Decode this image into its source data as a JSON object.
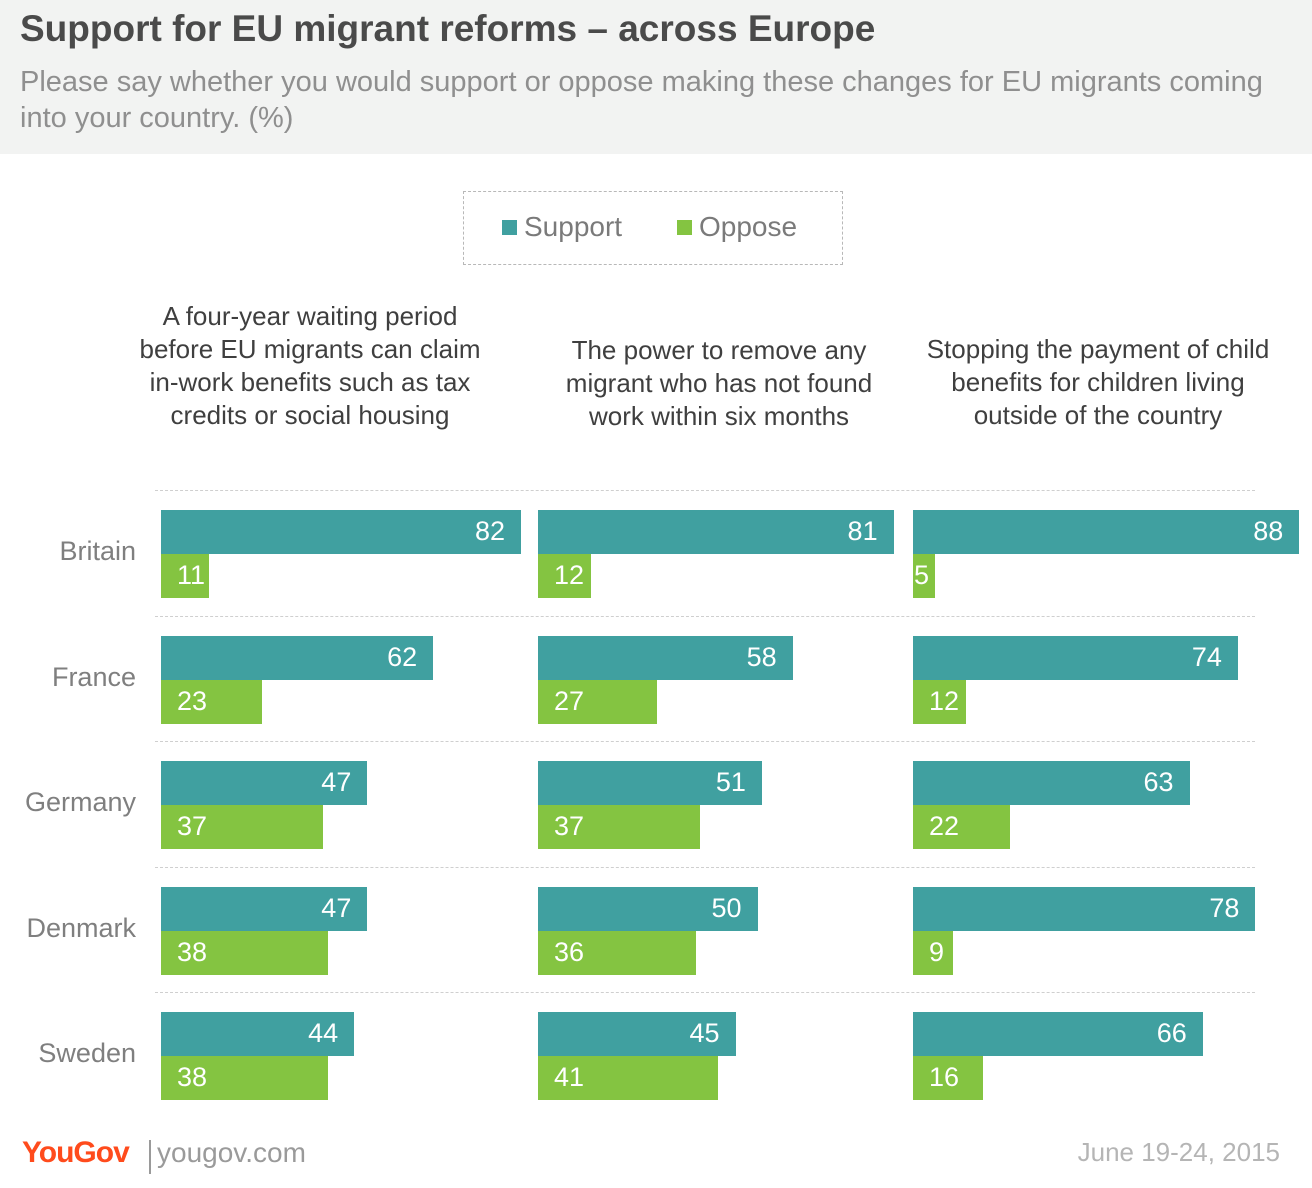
{
  "title": "Support for EU migrant reforms – across Europe",
  "subtitle": "Please say whether you would support or oppose making these changes for EU migrants coming into your country. (%)",
  "colors": {
    "support": "#40a0a0",
    "oppose": "#84c441",
    "brand": "#ff4b1c"
  },
  "footer": {
    "brand": "YouGov",
    "site": "yougov.com",
    "date": "June 19-24, 2015"
  },
  "chart_data": {
    "type": "bar",
    "orientation": "horizontal",
    "unit": "%",
    "legend": {
      "placement": "top-center",
      "entries": [
        "Support",
        "Oppose"
      ]
    },
    "grid": false,
    "categories": [
      "Britain",
      "France",
      "Germany",
      "Denmark",
      "Sweden"
    ],
    "panels": [
      {
        "title": "A four-year waiting period before EU migrants can claim in-work benefits such as tax credits or social housing",
        "series": [
          {
            "name": "Support",
            "values": [
              82,
              62,
              47,
              47,
              44
            ]
          },
          {
            "name": "Oppose",
            "values": [
              11,
              23,
              37,
              38,
              38
            ]
          }
        ]
      },
      {
        "title": "The power to remove any migrant who has not found work within six months",
        "series": [
          {
            "name": "Support",
            "values": [
              81,
              58,
              51,
              50,
              45
            ]
          },
          {
            "name": "Oppose",
            "values": [
              12,
              27,
              37,
              36,
              41
            ]
          }
        ]
      },
      {
        "title": "Stopping the payment of child benefits for children living outside of the country",
        "series": [
          {
            "name": "Support",
            "values": [
              88,
              74,
              63,
              78,
              66
            ]
          },
          {
            "name": "Oppose",
            "values": [
              5,
              12,
              22,
              9,
              16
            ]
          }
        ]
      }
    ]
  }
}
